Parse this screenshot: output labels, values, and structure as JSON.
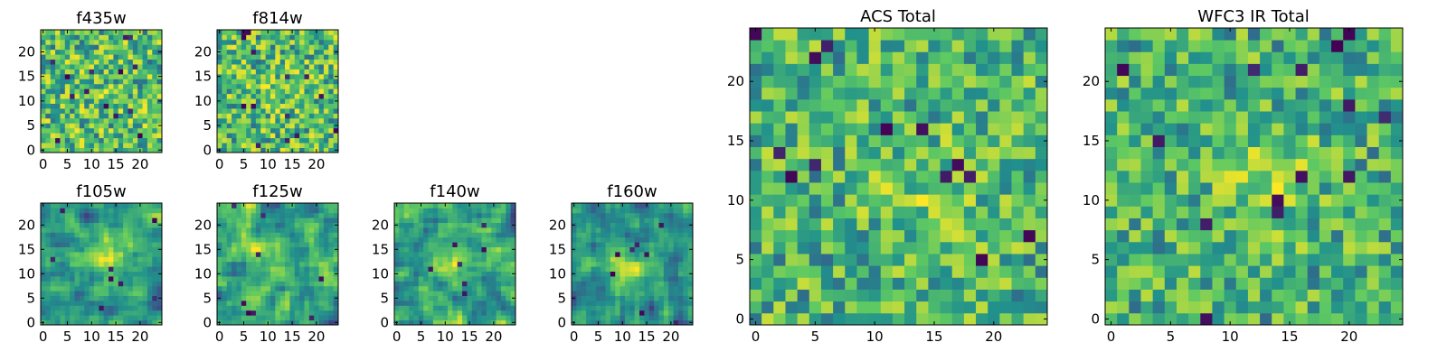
{
  "figure": {
    "colormap": [
      "#440154",
      "#3b528b",
      "#21918c",
      "#5ec962",
      "#fde725"
    ],
    "pixel_grid": "25x25"
  },
  "chart_data": [
    {
      "type": "heatmap",
      "title": "f435w",
      "xlim": [
        0,
        24
      ],
      "ylim": [
        0,
        24
      ],
      "xticks": [
        0,
        5,
        10,
        15,
        20
      ],
      "yticks": [
        0,
        5,
        10,
        15,
        20
      ],
      "seed": 11,
      "texture": "noise",
      "blob": {
        "x": 12,
        "y": 12,
        "strength": 0.05
      }
    },
    {
      "type": "heatmap",
      "title": "f814w",
      "xlim": [
        0,
        24
      ],
      "ylim": [
        0,
        24
      ],
      "xticks": [
        0,
        5,
        10,
        15,
        20
      ],
      "yticks": [
        0,
        5,
        10,
        15,
        20
      ],
      "seed": 23,
      "texture": "noise",
      "blob": {
        "x": 13,
        "y": 12,
        "strength": 0.15
      }
    },
    {
      "type": "heatmap",
      "title": "f105w",
      "xlim": [
        0,
        24
      ],
      "ylim": [
        0,
        24
      ],
      "xticks": [
        0,
        5,
        10,
        15,
        20
      ],
      "yticks": [
        0,
        5,
        10,
        15,
        20
      ],
      "seed": 37,
      "texture": "smooth",
      "blob": {
        "x": 13,
        "y": 13,
        "strength": 0.3
      }
    },
    {
      "type": "heatmap",
      "title": "f125w",
      "xlim": [
        0,
        24
      ],
      "ylim": [
        0,
        24
      ],
      "xticks": [
        0,
        5,
        10,
        15,
        20
      ],
      "yticks": [
        0,
        5,
        10,
        15,
        20
      ],
      "seed": 41,
      "texture": "smooth",
      "blob": {
        "x": 12,
        "y": 12,
        "strength": 0.15
      }
    },
    {
      "type": "heatmap",
      "title": "f140w",
      "xlim": [
        0,
        24
      ],
      "ylim": [
        0,
        24
      ],
      "xticks": [
        0,
        5,
        10,
        15,
        20
      ],
      "yticks": [
        0,
        5,
        10,
        15,
        20
      ],
      "seed": 53,
      "texture": "smooth",
      "blob": {
        "x": 12,
        "y": 12,
        "strength": 0.15
      }
    },
    {
      "type": "heatmap",
      "title": "f160w",
      "xlim": [
        0,
        24
      ],
      "ylim": [
        0,
        24
      ],
      "xticks": [
        0,
        5,
        10,
        15,
        20
      ],
      "yticks": [
        0,
        5,
        10,
        15,
        20
      ],
      "seed": 67,
      "texture": "smooth",
      "blob": {
        "x": 11,
        "y": 11,
        "strength": 0.3
      }
    },
    {
      "type": "heatmap",
      "title": "ACS Total",
      "xlim": [
        0,
        24
      ],
      "ylim": [
        0,
        24
      ],
      "xticks": [
        0,
        5,
        10,
        15,
        20
      ],
      "yticks": [
        0,
        5,
        10,
        15,
        20
      ],
      "seed": 79,
      "texture": "noise",
      "blob": {
        "x": 14,
        "y": 11,
        "strength": 0.25
      }
    },
    {
      "type": "heatmap",
      "title": "WFC3 IR Total",
      "xlim": [
        0,
        24
      ],
      "ylim": [
        0,
        24
      ],
      "xticks": [
        0,
        5,
        10,
        15,
        20
      ],
      "yticks": [
        0,
        5,
        10,
        15,
        20
      ],
      "seed": 97,
      "texture": "noise",
      "blob": {
        "x": 13,
        "y": 12,
        "strength": 0.35
      }
    }
  ]
}
